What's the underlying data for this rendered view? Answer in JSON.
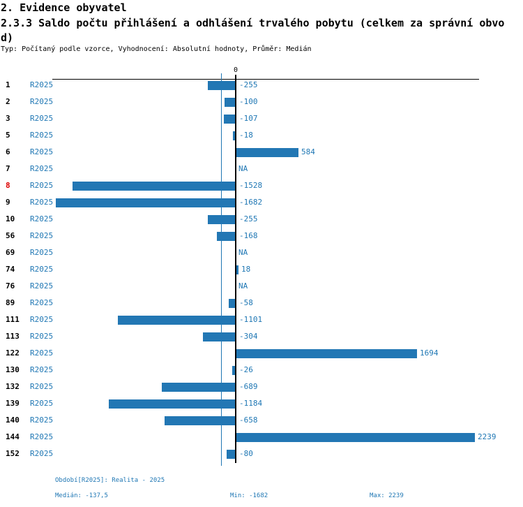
{
  "header": {
    "title": "2. Evidence obyvatel",
    "subtitle": "2.3.3 Saldo počtu přihlášení a odhlášení trvalého pobytu (celkem za správní obvod)",
    "meta": "Typ: Počítaný podle vzorce, Vyhodnocení: Absolutní hodnoty, Průměr: Medián"
  },
  "chart_data": {
    "type": "bar",
    "orientation": "horizontal",
    "title": "2.3.3 Saldo počtu přihlášení a odhlášení trvalého pobytu (celkem za správní obvod)",
    "series_label": "R2025",
    "categories": [
      "1",
      "2",
      "3",
      "5",
      "6",
      "7",
      "8",
      "9",
      "10",
      "56",
      "69",
      "74",
      "76",
      "89",
      "111",
      "113",
      "122",
      "130",
      "132",
      "139",
      "140",
      "144",
      "152"
    ],
    "values": [
      -255,
      -100,
      -107,
      -18,
      584,
      null,
      -1528,
      -1682,
      -255,
      -168,
      null,
      18,
      null,
      -58,
      -1101,
      -304,
      1694,
      -26,
      -689,
      -1184,
      -658,
      2239,
      -80
    ],
    "value_labels": [
      "-255",
      "-100",
      "-107",
      "-18",
      "584",
      "NA",
      "-1528",
      "-1682",
      "-255",
      "-168",
      "NA",
      "18",
      "NA",
      "-58",
      "-1101",
      "-304",
      "1694",
      "-26",
      "-689",
      "-1184",
      "-658",
      "2239",
      "-80"
    ],
    "na_label": "NA",
    "highlighted_category": "8",
    "zero_tick_label": "0",
    "median_value": -137.5,
    "xlim": [
      -1682,
      2239
    ],
    "grid": false,
    "legend_position": "none",
    "colors": {
      "bar": "#2277b4",
      "blue_text": "#1f77b4",
      "highlight": "#dd0000",
      "axis": "#000000",
      "median_line": "#1f77b4"
    }
  },
  "footer": {
    "period": "Období[R2025]: Realita - 2025",
    "median": "Medián: -137,5",
    "min": "Min: -1682",
    "max": "Max: 2239"
  }
}
